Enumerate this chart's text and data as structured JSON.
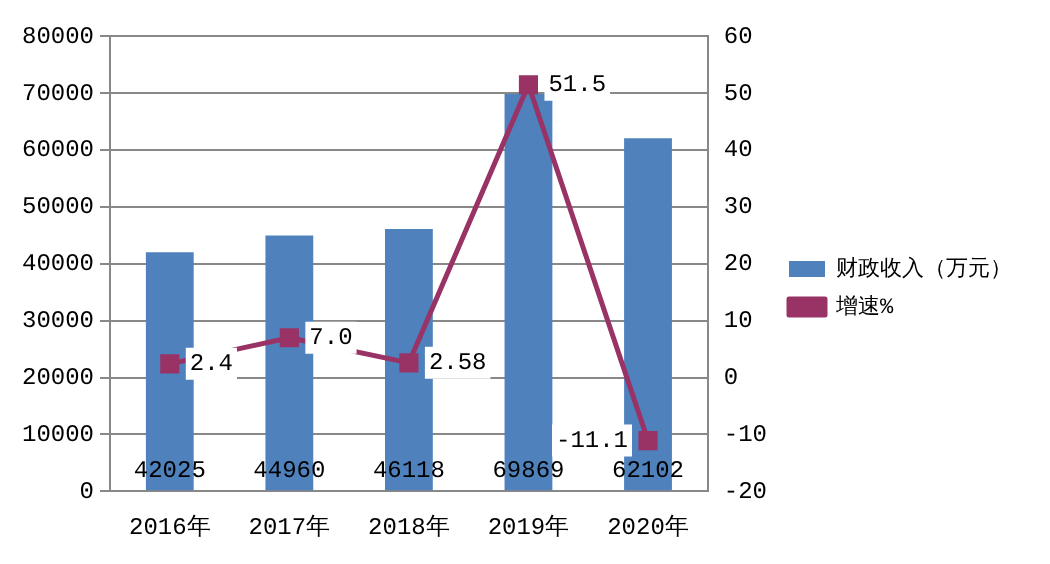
{
  "chart_data": {
    "type": "bar",
    "categories": [
      "2016年",
      "2017年",
      "2018年",
      "2019年",
      "2020年"
    ],
    "series": [
      {
        "name": "财政收入（万元）",
        "color": "#4f81bd",
        "values": [
          42025,
          44960,
          46118,
          69869,
          62102
        ],
        "value_labels": [
          "42025",
          "44960",
          "46118",
          "69869",
          "62102"
        ]
      },
      {
        "name": "增速%",
        "color": "#993366",
        "type": "line",
        "axis": "y2",
        "marker": "square",
        "values": [
          2.4,
          7.0,
          2.58,
          51.5,
          -11.1
        ],
        "value_labels": [
          "2.4",
          "7.0",
          "2.58",
          "51.5",
          "-11.1"
        ]
      }
    ],
    "ylim": [
      0,
      80000
    ],
    "yticks": [
      0,
      10000,
      20000,
      30000,
      40000,
      50000,
      60000,
      70000,
      80000
    ],
    "y2lim": [
      -20,
      60
    ],
    "y2ticks": [
      -20,
      -10,
      0,
      10,
      20,
      30,
      40,
      50,
      60
    ],
    "grid": "y",
    "legend": "right"
  }
}
